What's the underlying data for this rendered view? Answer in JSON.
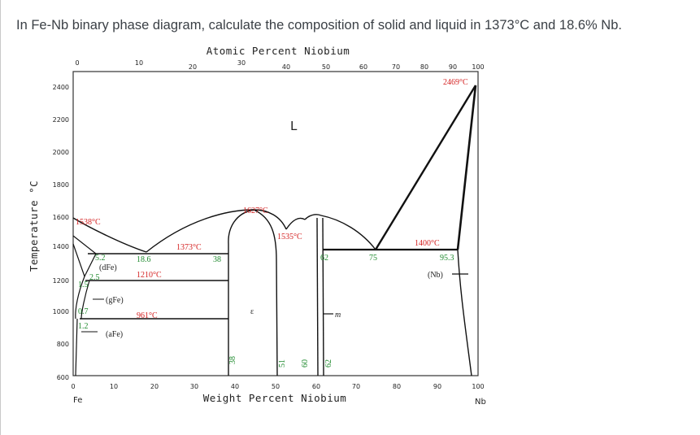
{
  "question": "In Fe-Nb binary phase diagram, calculate the composition of solid and liquid in 1373°C and 18.6% Nb.",
  "diagram": {
    "top_axis_title": "Atomic Percent Niobium",
    "bottom_axis_title": "Weight Percent Niobium",
    "y_axis_title": "Temperature °C",
    "top_ticks": [
      "0",
      "10",
      "20",
      "30",
      "40",
      "50",
      "60",
      "70",
      "80",
      "90",
      "100"
    ],
    "bottom_ticks": [
      "0",
      "10",
      "20",
      "30",
      "40",
      "50",
      "60",
      "70",
      "80",
      "90",
      "100"
    ],
    "y_ticks": [
      "2400",
      "2200",
      "2000",
      "1800",
      "1600",
      "1400",
      "1200",
      "1000",
      "800",
      "600"
    ],
    "left_element": "Fe",
    "right_element": "Nb",
    "temperature_labels": {
      "nb_melting": "2469°C",
      "peak": "1627°C",
      "fe_melting": "1538°C",
      "peritectic": "1535°C",
      "eutectic_right": "1400°C",
      "eutectic_left": "1373°C",
      "gamma_delta": "1210°C",
      "alpha_gamma": "961°C"
    },
    "composition_labels": {
      "c_5_2": "5.2",
      "c_18_6": "18.6",
      "c_38_a": "38",
      "c_2_5": "2.5",
      "c_1_5": "1.5",
      "c_0_7": "0.7",
      "c_1_2": "1.2",
      "c_62_a": "62",
      "c_75": "75",
      "c_95_3": "95.3",
      "c_38_b": "38",
      "c_51": "51",
      "c_60": "60",
      "c_62_b": "62"
    },
    "phase_labels": {
      "liquid": "L",
      "delta_fe": "(dFe)",
      "gamma_fe": "(gFe)",
      "alpha_fe": "(aFe)",
      "epsilon": "ε",
      "mu": "m",
      "nb": "(Nb)"
    }
  }
}
